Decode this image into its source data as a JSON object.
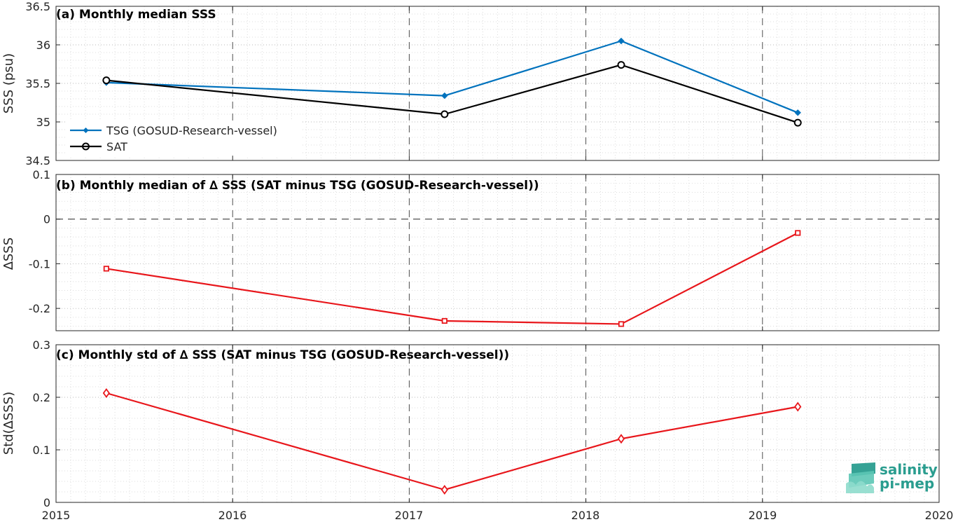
{
  "colors": {
    "tsg": "#0072BD",
    "sat": "#000000",
    "delta": "#E8161B",
    "logo": "#2a9d8f"
  },
  "x_tick_labels": [
    "2015",
    "2016",
    "2017",
    "2018",
    "2019",
    "2020"
  ],
  "logo": {
    "line1": "salinity",
    "line2": "pi-mep"
  },
  "chart_data": [
    {
      "type": "line",
      "title": "(a) Monthly median SSS",
      "ylabel": "SSS (psu)",
      "xlim": [
        "2015-01-01",
        "2020-01-01"
      ],
      "ylim": [
        34.5,
        36.5
      ],
      "yticks": [
        34.5,
        35,
        35.5,
        36,
        36.5
      ],
      "ytick_labels": [
        "34.5",
        "35",
        "35.5",
        "36",
        "36.5"
      ],
      "x_dates": [
        "2015-04-15",
        "2017-03-15",
        "2018-03-15",
        "2019-03-15"
      ],
      "series": [
        {
          "name": "TSG (GOSUD-Research-vessel)",
          "marker": "filled-diamond",
          "values": [
            35.51,
            35.34,
            36.05,
            35.12
          ]
        },
        {
          "name": "SAT",
          "marker": "circle",
          "values": [
            35.54,
            35.1,
            35.74,
            34.99
          ]
        }
      ],
      "legend": "lower-left",
      "grid": true
    },
    {
      "type": "line",
      "title": "(b) Monthly median of ∆ SSS (SAT minus TSG (GOSUD-Research-vessel))",
      "ylabel": "∆SSS",
      "xlim": [
        "2015-01-01",
        "2020-01-01"
      ],
      "ylim": [
        -0.25,
        0.1
      ],
      "yticks": [
        -0.2,
        -0.1,
        0,
        0.1
      ],
      "ytick_labels": [
        "-0.2",
        "-0.1",
        "0",
        "0.1"
      ],
      "zero_line": true,
      "x_dates": [
        "2015-04-15",
        "2017-03-15",
        "2018-03-15",
        "2019-03-15"
      ],
      "series": [
        {
          "marker": "square",
          "values": [
            -0.111,
            -0.228,
            -0.235,
            -0.031
          ]
        }
      ],
      "grid": true
    },
    {
      "type": "line",
      "title": "(c) Monthly std of ∆ SSS (SAT minus TSG (GOSUD-Research-vessel))",
      "ylabel": "Std(∆SSS)",
      "xlim": [
        "2015-01-01",
        "2020-01-01"
      ],
      "ylim": [
        0,
        0.3
      ],
      "yticks": [
        0,
        0.1,
        0.2,
        0.3
      ],
      "ytick_labels": [
        "0",
        "0.1",
        "0.2",
        "0.3"
      ],
      "x_dates": [
        "2015-04-15",
        "2017-03-15",
        "2018-03-15",
        "2019-03-15"
      ],
      "series": [
        {
          "marker": "diamond",
          "values": [
            0.208,
            0.024,
            0.121,
            0.182
          ]
        }
      ],
      "grid": true
    }
  ]
}
